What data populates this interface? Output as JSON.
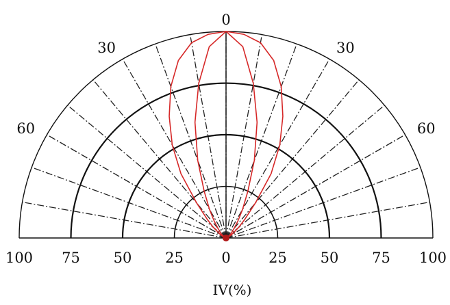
{
  "chart_data": {
    "type": "polar",
    "xlabel": "IV(%)",
    "radial_range": [
      0,
      100
    ],
    "radial_ticks": [
      0,
      25,
      50,
      75,
      100
    ],
    "radial_tick_labels": [
      "100",
      "75",
      "50",
      "25",
      "0",
      "25",
      "50",
      "75",
      "100"
    ],
    "angle_range": [
      -90,
      90
    ],
    "angle_labels": [
      {
        "angle": 0,
        "text": "0"
      },
      {
        "angle": -30,
        "text": "30"
      },
      {
        "angle": 30,
        "text": "30"
      },
      {
        "angle": -60,
        "text": "60"
      },
      {
        "angle": 60,
        "text": "60"
      }
    ],
    "angle_gridline_step": 10,
    "grid": true,
    "series": [
      {
        "color": "#d62828",
        "points": [
          [
            -90,
            0
          ],
          [
            -80,
            0
          ],
          [
            -70,
            1
          ],
          [
            -60,
            3
          ],
          [
            -50,
            8
          ],
          [
            -45,
            13
          ],
          [
            -40,
            22
          ],
          [
            -35,
            38
          ],
          [
            -30,
            52
          ],
          [
            -25,
            65
          ],
          [
            -20,
            78
          ],
          [
            -15,
            89
          ],
          [
            -10,
            96
          ],
          [
            -5,
            99
          ],
          [
            0,
            100
          ],
          [
            5,
            99
          ],
          [
            10,
            96
          ],
          [
            15,
            89
          ],
          [
            20,
            78
          ],
          [
            25,
            65
          ],
          [
            30,
            52
          ],
          [
            35,
            38
          ],
          [
            40,
            22
          ],
          [
            45,
            13
          ],
          [
            50,
            8
          ],
          [
            60,
            3
          ],
          [
            70,
            1
          ],
          [
            80,
            0
          ],
          [
            90,
            0
          ]
        ]
      },
      {
        "color": "#d62828",
        "points": [
          [
            -90,
            0
          ],
          [
            -80,
            0
          ],
          [
            -70,
            0
          ],
          [
            -60,
            1
          ],
          [
            -50,
            3
          ],
          [
            -40,
            6
          ],
          [
            -35,
            10
          ],
          [
            -30,
            16
          ],
          [
            -25,
            25
          ],
          [
            -20,
            40
          ],
          [
            -15,
            58
          ],
          [
            -10,
            76
          ],
          [
            -5,
            93
          ],
          [
            0,
            100
          ],
          [
            5,
            93
          ],
          [
            10,
            76
          ],
          [
            15,
            58
          ],
          [
            20,
            40
          ],
          [
            25,
            25
          ],
          [
            30,
            16
          ],
          [
            35,
            10
          ],
          [
            40,
            6
          ],
          [
            50,
            3
          ],
          [
            60,
            1
          ],
          [
            70,
            0
          ],
          [
            80,
            0
          ],
          [
            90,
            0
          ]
        ]
      }
    ]
  }
}
